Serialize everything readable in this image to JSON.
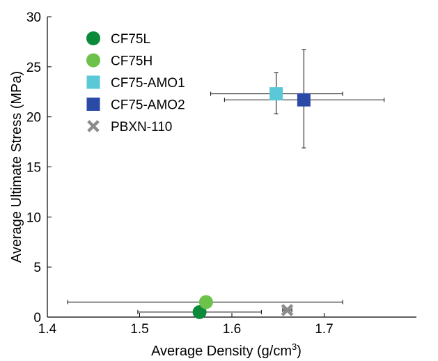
{
  "chart_data": {
    "type": "scatter",
    "title": "",
    "xlabel_main": "Average Density (g/cm",
    "xlabel_sup": "3",
    "xlabel_end": ")",
    "ylabel": "Average Ultimate Stress (MPa)",
    "xlim": [
      1.4,
      1.8
    ],
    "ylim": [
      0,
      30
    ],
    "x_ticks": [
      "1.4",
      "1.5",
      "1.6",
      "1.7"
    ],
    "y_ticks": [
      "0",
      "5",
      "10",
      "15",
      "20",
      "25",
      "30"
    ],
    "grid": false,
    "legend_position": "top-left",
    "series": [
      {
        "name": "CF75L",
        "marker": "circle",
        "color": "#0b8a3a",
        "x": 1.565,
        "y": 0.5,
        "x_err": [
          1.498,
          1.632
        ],
        "y_err": [
          0.3,
          0.7
        ]
      },
      {
        "name": "CF75H",
        "marker": "circle",
        "color": "#6cc24a",
        "x": 1.572,
        "y": 1.5,
        "x_err": [
          1.422,
          1.72
        ],
        "y_err": [
          1.2,
          1.9
        ]
      },
      {
        "name": "CF75-AMO1",
        "marker": "square",
        "color": "#5bc8d8",
        "x": 1.648,
        "y": 22.3,
        "x_err": [
          1.577,
          1.72
        ],
        "y_err": [
          20.3,
          24.4
        ]
      },
      {
        "name": "CF75-AMO2",
        "marker": "square",
        "color": "#2b4aa5",
        "x": 1.678,
        "y": 21.7,
        "x_err": [
          1.592,
          1.765
        ],
        "y_err": [
          16.9,
          26.7
        ]
      },
      {
        "name": "PBXN-110",
        "marker": "x",
        "color": "#8c8c8c",
        "x": 1.66,
        "y": 0.7,
        "x_err": [
          1.655,
          1.665
        ],
        "y_err": [
          0.5,
          0.9
        ]
      }
    ]
  }
}
